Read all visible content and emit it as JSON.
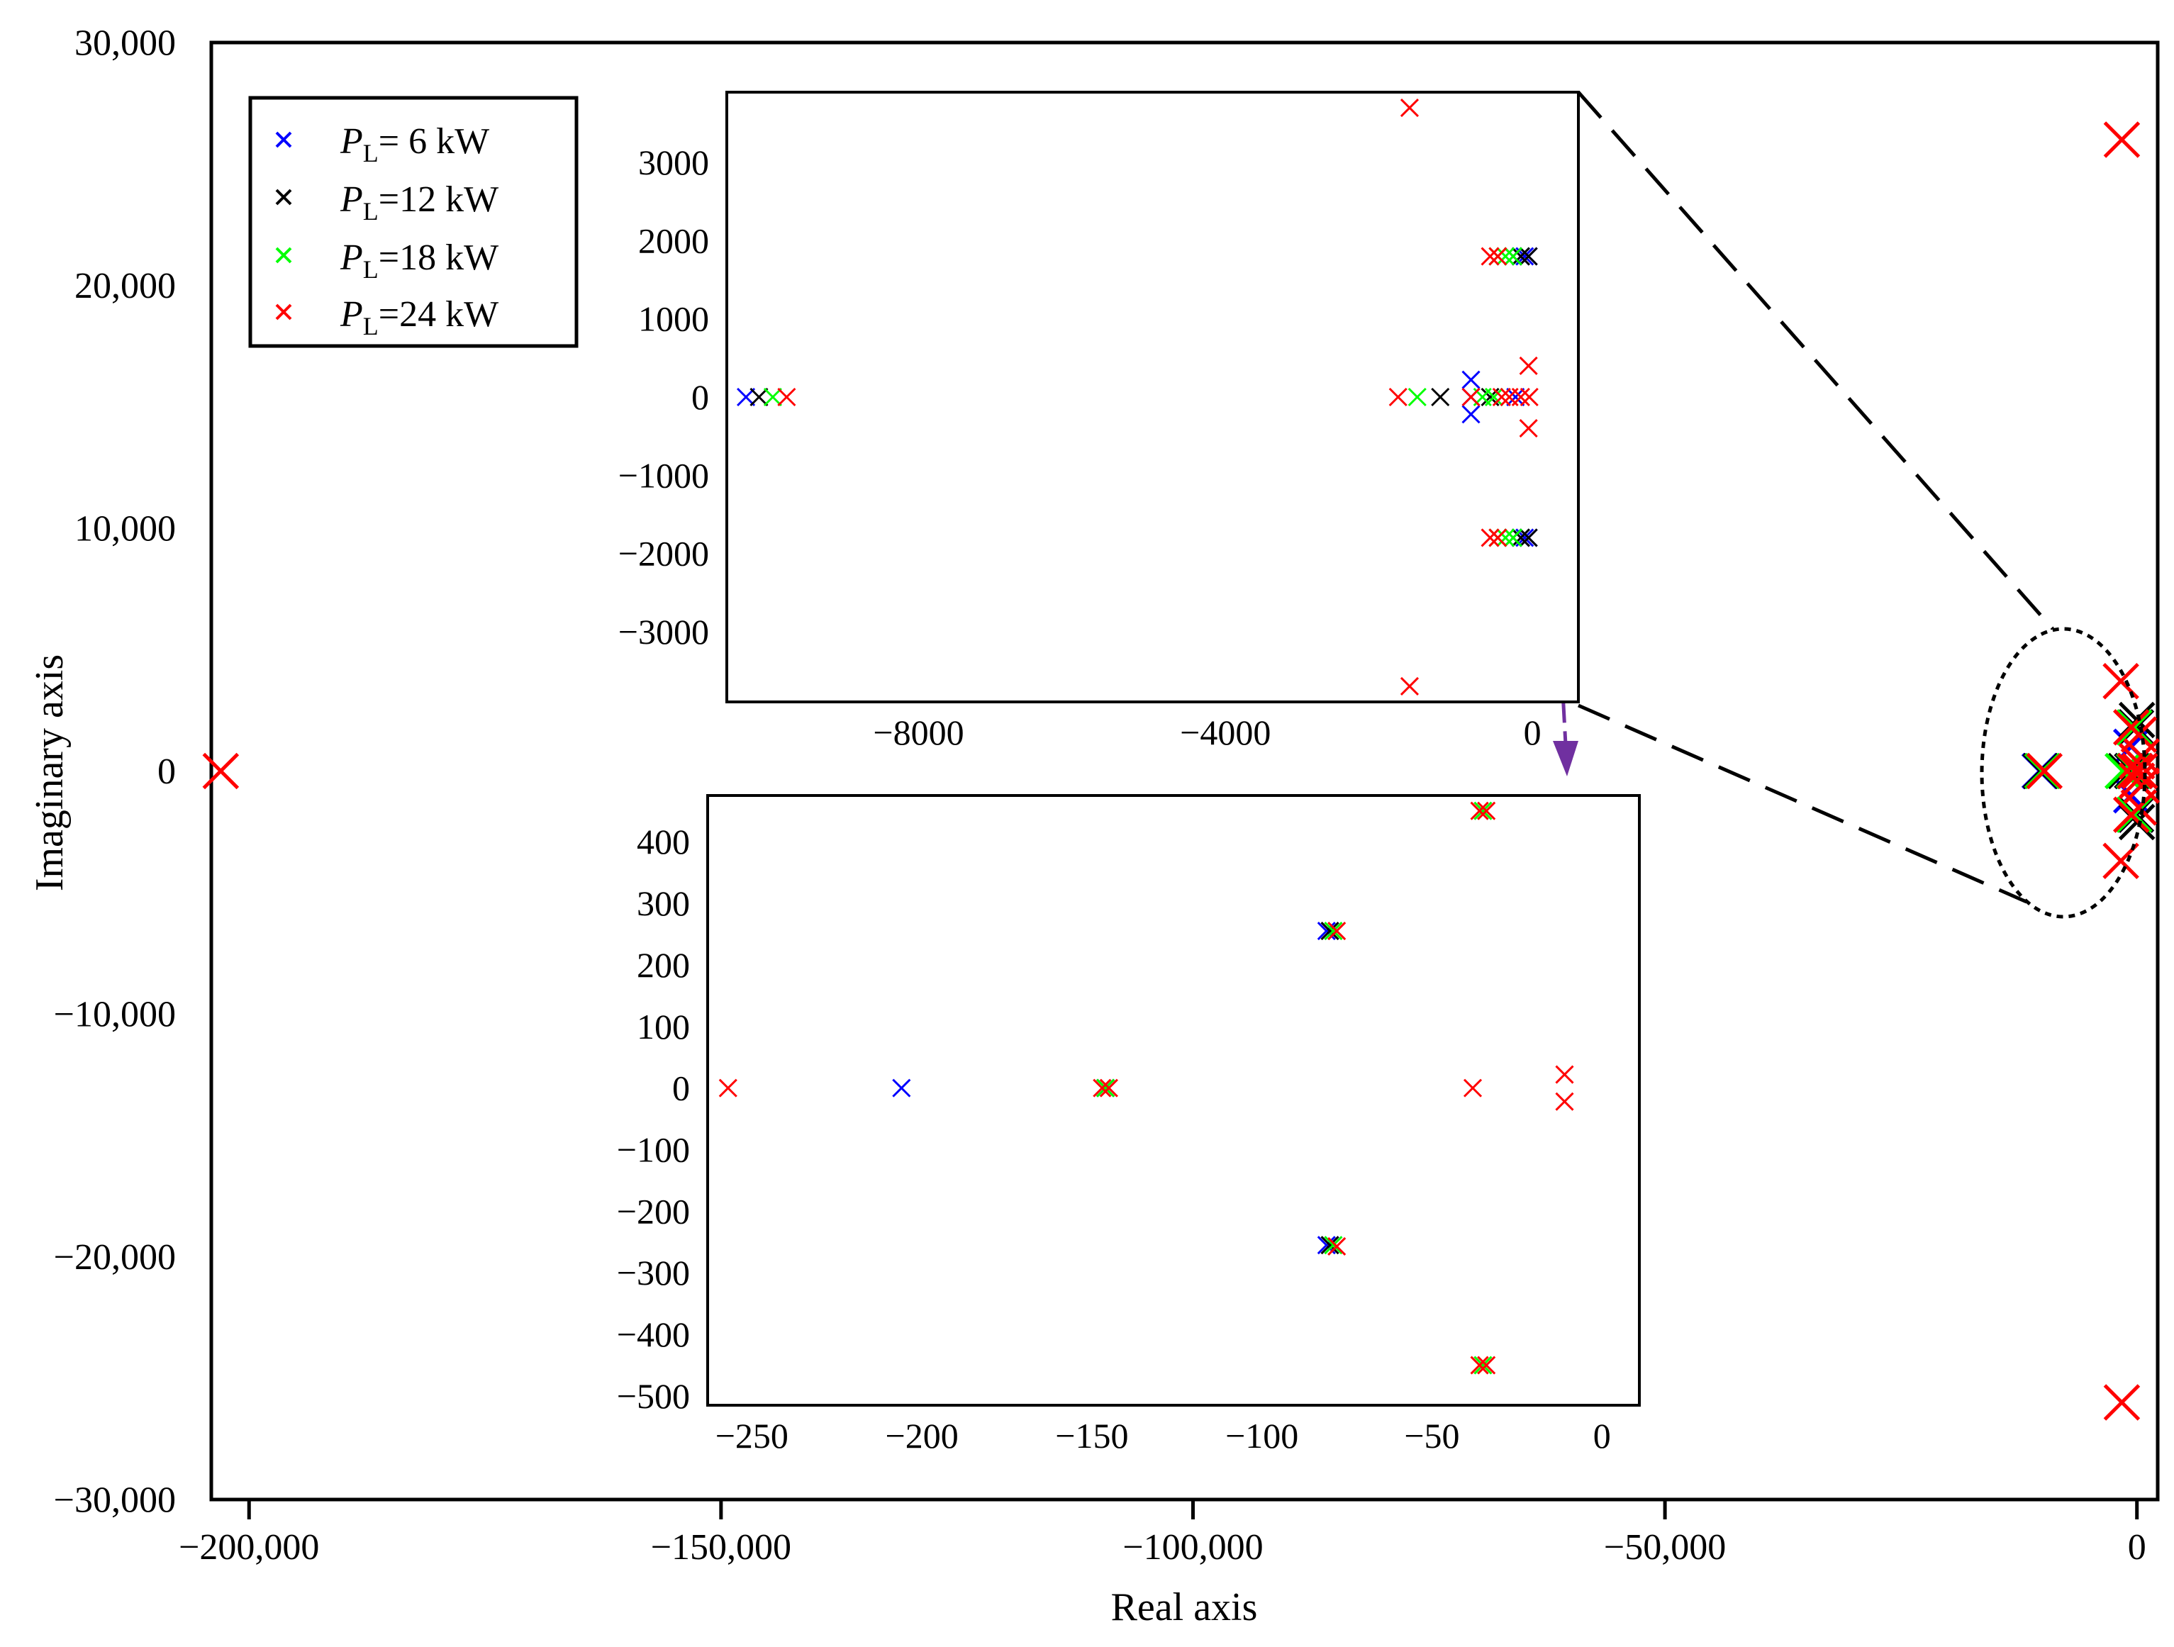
{
  "chart_data": [
    {
      "id": "main",
      "type": "scatter",
      "marker": "x",
      "xlabel": "Real axis",
      "ylabel": "Imaginary axis",
      "xlim": [
        -204000,
        2200
      ],
      "ylim": [
        -30000,
        30000
      ],
      "xticks": [
        -200000,
        -150000,
        -100000,
        -50000,
        0
      ],
      "xtick_labels": [
        "−200,000",
        "−150,000",
        "−100,000",
        "−50,000",
        "0"
      ],
      "yticks": [
        30000,
        20000,
        10000,
        0,
        -10000,
        -20000,
        -30000
      ],
      "ytick_labels": [
        "30,000",
        "20,000",
        "10,000",
        "0",
        "−10,000",
        "−20,000",
        "−30,000"
      ],
      "legend": {
        "position": "top-left",
        "entries": [
          {
            "prefix": "P",
            "sub": "L",
            "text": "=  6 kW",
            "color": "#0000ff"
          },
          {
            "prefix": "P",
            "sub": "L",
            "text": "=12 kW",
            "color": "#000000"
          },
          {
            "prefix": "P",
            "sub": "L",
            "text": "=18 kW",
            "color": "#00ff00"
          },
          {
            "prefix": "P",
            "sub": "L",
            "text": "=24 kW",
            "color": "#ff0000"
          }
        ]
      },
      "series": [
        {
          "name": "PL=6 kW",
          "color": "#0000ff",
          "points": [
            [
              -10300,
              0
            ],
            [
              -500,
              0
            ],
            [
              -200,
              0
            ],
            [
              -600,
              1000
            ],
            [
              -600,
              -1000
            ],
            [
              -100,
              1800
            ],
            [
              -100,
              -1800
            ]
          ]
        },
        {
          "name": "PL=12 kW",
          "color": "#000000",
          "points": [
            [
              -10200,
              0
            ],
            [
              -1200,
              0
            ],
            [
              -500,
              0
            ],
            [
              -100,
              1800
            ],
            [
              -100,
              -1800
            ],
            [
              0,
              2100
            ],
            [
              0,
              -2100
            ]
          ]
        },
        {
          "name": "PL=18 kW",
          "color": "#00ff00",
          "points": [
            [
              -10000,
              0
            ],
            [
              -1500,
              0
            ],
            [
              -300,
              0
            ],
            [
              -300,
              1800
            ],
            [
              -300,
              -1800
            ]
          ]
        },
        {
          "name": "PL=24 kW",
          "color": "#ff0000",
          "points": [
            [
              -203000,
              0
            ],
            [
              -1600,
              26000
            ],
            [
              -1600,
              -26000
            ],
            [
              -1700,
              3700
            ],
            [
              -1700,
              -3700
            ],
            [
              -9800,
              0
            ],
            [
              -600,
              1800
            ],
            [
              -600,
              -1800
            ],
            [
              -200,
              0
            ],
            [
              0,
              400
            ],
            [
              0,
              -400
            ],
            [
              200,
              1500
            ],
            [
              200,
              -1500
            ],
            [
              300,
              0
            ],
            [
              500,
              600
            ],
            [
              500,
              -600
            ]
          ]
        }
      ]
    },
    {
      "id": "inset_top",
      "type": "scatter",
      "marker": "x",
      "xlim": [
        -10500,
        600
      ],
      "ylim": [
        -3900,
        3900
      ],
      "xticks": [
        -8000,
        -4000,
        0
      ],
      "xtick_labels": [
        "−8000",
        "−4000",
        "0"
      ],
      "yticks": [
        3000,
        2000,
        1000,
        0,
        -1000,
        -2000,
        -3000
      ],
      "ytick_labels": [
        "3000",
        "2000",
        "1000",
        "0",
        "−1000",
        "−2000",
        "−3000"
      ],
      "series": [
        {
          "name": "PL=6 kW",
          "color": "#0000ff",
          "points": [
            [
              -10250,
              0
            ],
            [
              -800,
              0
            ],
            [
              -800,
              220
            ],
            [
              -800,
              -220
            ],
            [
              -220,
              0
            ],
            [
              -100,
              1800
            ],
            [
              -100,
              -1800
            ],
            [
              -50,
              1800
            ],
            [
              -50,
              -1800
            ],
            [
              -150,
              1800
            ],
            [
              -150,
              -1800
            ]
          ]
        },
        {
          "name": "PL=12 kW",
          "color": "#000000",
          "points": [
            [
              -10080,
              0
            ],
            [
              -1200,
              0
            ],
            [
              -550,
              0
            ],
            [
              -150,
              1800
            ],
            [
              -150,
              -1800
            ],
            [
              -50,
              1800
            ],
            [
              -50,
              -1800
            ],
            [
              -250,
              1800
            ],
            [
              -250,
              -1800
            ]
          ]
        },
        {
          "name": "PL=18 kW",
          "color": "#00ff00",
          "points": [
            [
              -9900,
              0
            ],
            [
              -1500,
              0
            ],
            [
              -650,
              0
            ],
            [
              -500,
              0
            ],
            [
              -250,
              1800
            ],
            [
              -250,
              -1800
            ],
            [
              -350,
              1800
            ],
            [
              -350,
              -1800
            ],
            [
              -450,
              1800
            ],
            [
              -450,
              -1800
            ]
          ]
        },
        {
          "name": "PL=24 kW",
          "color": "#ff0000",
          "points": [
            [
              -9720,
              0
            ],
            [
              -1750,
              0
            ],
            [
              -1600,
              3700
            ],
            [
              -1600,
              -3700
            ],
            [
              -800,
              0
            ],
            [
              -550,
              1800
            ],
            [
              -550,
              -1800
            ],
            [
              -450,
              1800
            ],
            [
              -450,
              -1800
            ],
            [
              -400,
              0
            ],
            [
              -300,
              0
            ],
            [
              -150,
              0
            ],
            [
              -50,
              400
            ],
            [
              -50,
              -400
            ],
            [
              -40,
              0
            ]
          ]
        }
      ]
    },
    {
      "id": "inset_bottom",
      "type": "scatter",
      "marker": "x",
      "xlim": [
        -263,
        11
      ],
      "ylim": [
        -515,
        475
      ],
      "xticks": [
        -250,
        -200,
        -150,
        -100,
        -50,
        0
      ],
      "xtick_labels": [
        "−250",
        "−200",
        "−150",
        "−100",
        "−50",
        "0"
      ],
      "yticks": [
        400,
        300,
        200,
        100,
        0,
        -100,
        -200,
        -300,
        -400,
        -500
      ],
      "ytick_labels": [
        "400",
        "300",
        "200",
        "100",
        "0",
        "−100",
        "−200",
        "−300",
        "−400",
        "−500"
      ],
      "series": [
        {
          "name": "PL=6 kW",
          "color": "#0000ff",
          "points": [
            [
              -206,
              0
            ],
            [
              -81,
              255
            ],
            [
              -81,
              -255
            ],
            [
              -146,
              0
            ]
          ]
        },
        {
          "name": "PL=12 kW",
          "color": "#000000",
          "points": [
            [
              -80,
              255
            ],
            [
              -80,
              -255
            ],
            [
              -146,
              0
            ]
          ]
        },
        {
          "name": "PL=18 kW",
          "color": "#00ff00",
          "points": [
            [
              -79,
              255
            ],
            [
              -79,
              -255
            ],
            [
              -146,
              0
            ],
            [
              -35,
              450
            ],
            [
              -35,
              -450
            ]
          ]
        },
        {
          "name": "PL=24 kW",
          "color": "#ff0000",
          "points": [
            [
              -257,
              0
            ],
            [
              -147,
              0
            ],
            [
              -145,
              0
            ],
            [
              -78,
              255
            ],
            [
              -78,
              -257
            ],
            [
              -36,
              450
            ],
            [
              -34,
              450
            ],
            [
              -36,
              -450
            ],
            [
              -34,
              -450
            ],
            [
              -38,
              0
            ],
            [
              -11,
              22
            ],
            [
              -11,
              -22
            ]
          ]
        }
      ]
    }
  ]
}
